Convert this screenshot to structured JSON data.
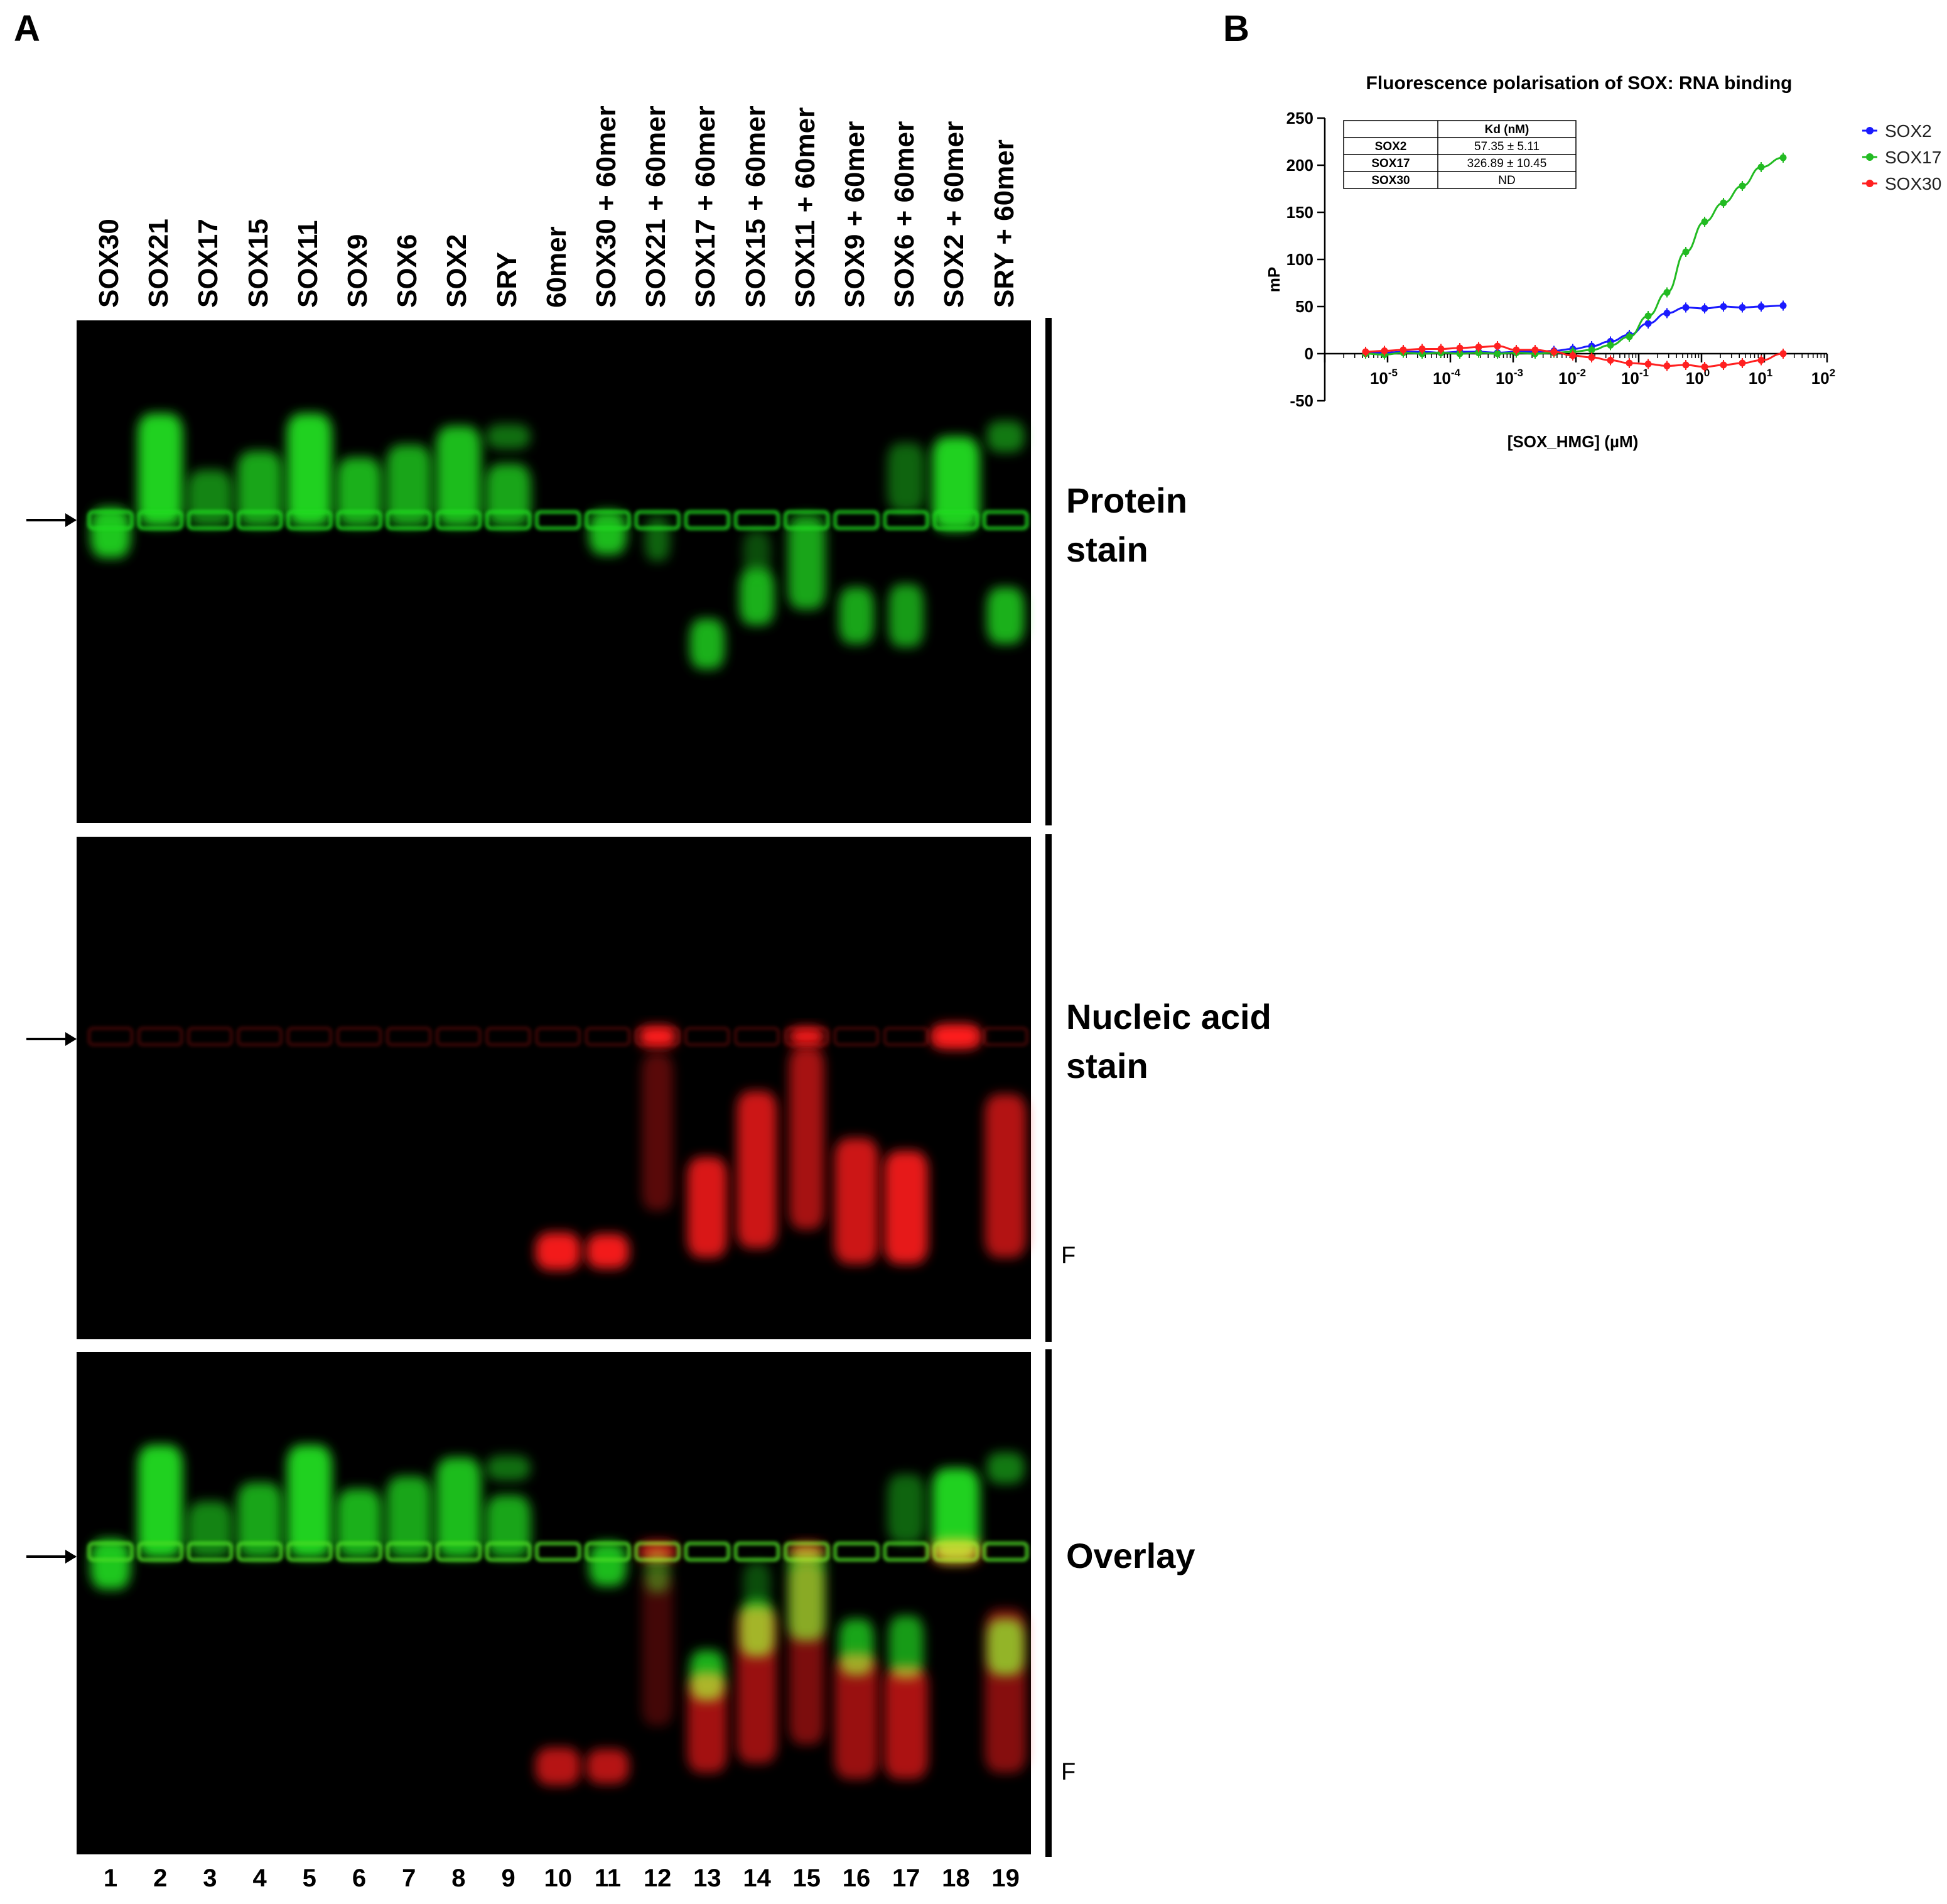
{
  "panels": {
    "a": "A",
    "b": "B"
  },
  "gel": {
    "lane_labels": [
      "SOX30",
      "SOX21",
      "SOX17",
      "SOX15",
      "SOX11",
      "SOX9",
      "SOX6",
      "SOX2",
      "SRY",
      "60mer",
      "SOX30 + 60mer",
      "SOX21 + 60mer",
      "SOX17 + 60mer",
      "SOX15 + 60mer",
      "SOX11 + 60mer",
      "SOX9 + 60mer",
      "SOX6 + 60mer",
      "SOX2 + 60mer",
      "SRY + 60mer"
    ],
    "lane_numbers": [
      "1",
      "2",
      "3",
      "4",
      "5",
      "6",
      "7",
      "8",
      "9",
      "10",
      "11",
      "12",
      "13",
      "14",
      "15",
      "16",
      "17",
      "18",
      "19"
    ],
    "stains": {
      "protein": {
        "line1": "Protein",
        "line2": "stain"
      },
      "nucleic": {
        "line1": "Nucleic acid",
        "line2": "stain"
      },
      "overlay": {
        "line1": "Overlay"
      }
    },
    "free_probe_label": "F",
    "colors": {
      "protein": "#22dd22",
      "nucleic": "#ff1a1a",
      "background": "#000000"
    }
  },
  "chart_data": {
    "type": "scatter",
    "title": "Fluorescence polarisation of SOX: RNA binding",
    "xlabel": "[SOX_HMG] (µM)",
    "ylabel": "mP",
    "x_scale": "log10",
    "xlim_exponent": [
      -6,
      2
    ],
    "x_tick_exponents": [
      -5,
      -4,
      -3,
      -2,
      -1,
      0,
      1,
      2
    ],
    "ylim": [
      -50,
      250
    ],
    "y_ticks": [
      -50,
      0,
      50,
      100,
      150,
      200,
      250
    ],
    "legend_position": "top-right",
    "series": [
      {
        "name": "SOX2",
        "color": "#1a1aff",
        "log10_x": [
          -5.35,
          -5.05,
          -4.75,
          -4.45,
          -4.15,
          -3.85,
          -3.55,
          -3.25,
          -2.95,
          -2.65,
          -2.35,
          -2.05,
          -1.75,
          -1.45,
          -1.15,
          -0.85,
          -0.55,
          -0.25,
          0.05,
          0.35,
          0.65,
          0.95,
          1.3
        ],
        "y": [
          1,
          1,
          2,
          2,
          1,
          2,
          2,
          1,
          2,
          2,
          3,
          5,
          8,
          13,
          20,
          32,
          43,
          49,
          48,
          50,
          49,
          50,
          51
        ]
      },
      {
        "name": "SOX17",
        "color": "#22bb22",
        "log10_x": [
          -5.35,
          -5.05,
          -4.75,
          -4.45,
          -4.15,
          -3.85,
          -3.55,
          -3.25,
          -2.95,
          -2.65,
          -2.35,
          -2.05,
          -1.75,
          -1.45,
          -1.15,
          -0.85,
          -0.55,
          -0.25,
          0.05,
          0.35,
          0.65,
          0.95,
          1.3
        ],
        "y": [
          0,
          -1,
          1,
          0,
          1,
          0,
          1,
          0,
          1,
          0,
          1,
          2,
          4,
          9,
          18,
          40,
          65,
          108,
          140,
          160,
          178,
          198,
          208
        ]
      },
      {
        "name": "SOX30",
        "color": "#ff2020",
        "log10_x": [
          -5.35,
          -5.05,
          -4.75,
          -4.45,
          -4.15,
          -3.85,
          -3.55,
          -3.25,
          -2.95,
          -2.65,
          -2.35,
          -2.05,
          -1.75,
          -1.45,
          -1.15,
          -0.85,
          -0.55,
          -0.25,
          0.05,
          0.35,
          0.65,
          0.95,
          1.3
        ],
        "y": [
          2,
          3,
          4,
          5,
          5,
          6,
          7,
          8,
          4,
          4,
          2,
          -2,
          -4,
          -7,
          -10,
          -11,
          -13,
          -12,
          -14,
          -12,
          -10,
          -7,
          0
        ]
      }
    ],
    "kd_table": {
      "header": [
        "",
        "Kd (nM)"
      ],
      "rows": [
        [
          "SOX2",
          "57.35 ± 5.11"
        ],
        [
          "SOX17",
          "326.89 ± 10.45"
        ],
        [
          "SOX30",
          "ND"
        ]
      ]
    }
  }
}
